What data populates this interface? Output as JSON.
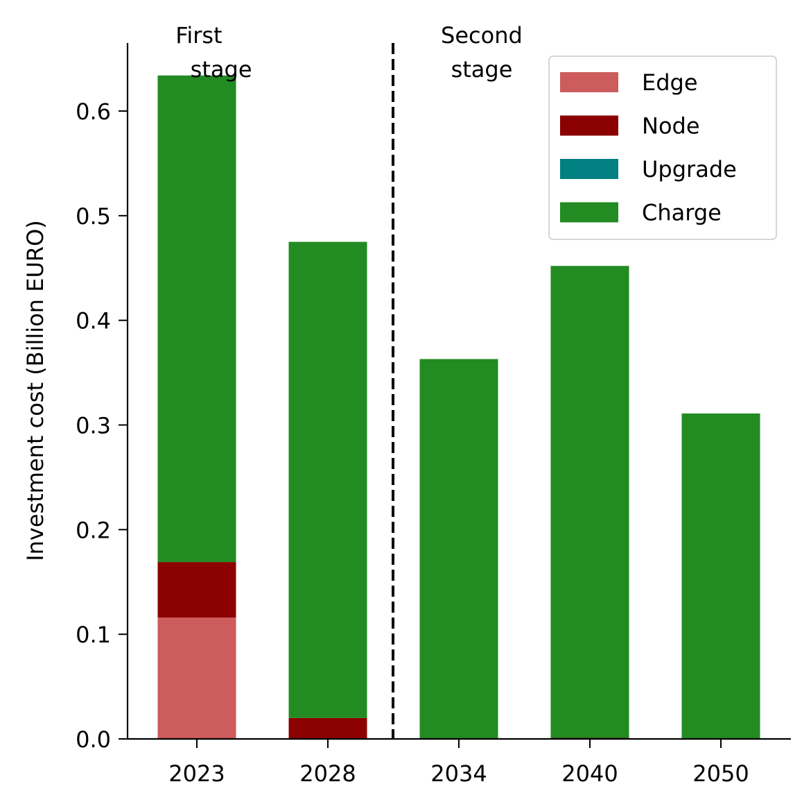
{
  "chart_data": {
    "type": "bar",
    "stacked": true,
    "categories": [
      "2023",
      "2028",
      "2034",
      "2040",
      "2050"
    ],
    "series": [
      {
        "name": "Edge",
        "color": "#CD5C5C",
        "values": [
          0.116,
          0.0,
          0.0,
          0.0,
          0.0
        ]
      },
      {
        "name": "Node",
        "color": "#8B0000",
        "values": [
          0.053,
          0.02,
          0.0,
          0.001,
          0.0
        ]
      },
      {
        "name": "Upgrade",
        "color": "#008080",
        "values": [
          0.0,
          0.0,
          0.0,
          0.0,
          0.0
        ]
      },
      {
        "name": "Charge",
        "color": "#228B22",
        "values": [
          0.465,
          0.455,
          0.363,
          0.451,
          0.311
        ]
      }
    ],
    "ylabel": "Investment cost (Billion EURO)",
    "xlabel": "",
    "ylim": [
      0,
      0.665
    ],
    "yticks": [
      "0.0",
      "0.1",
      "0.2",
      "0.3",
      "0.4",
      "0.5",
      "0.6"
    ],
    "stage_divider": {
      "between": [
        "2028",
        "2034"
      ],
      "style": "dashed"
    },
    "annotations": [
      {
        "text_lines": [
          "First",
          " stage"
        ],
        "near": "2023"
      },
      {
        "text_lines": [
          "Second",
          "stage"
        ],
        "near": "2034"
      }
    ],
    "legend": {
      "placement": "top-right"
    },
    "grid": false
  }
}
